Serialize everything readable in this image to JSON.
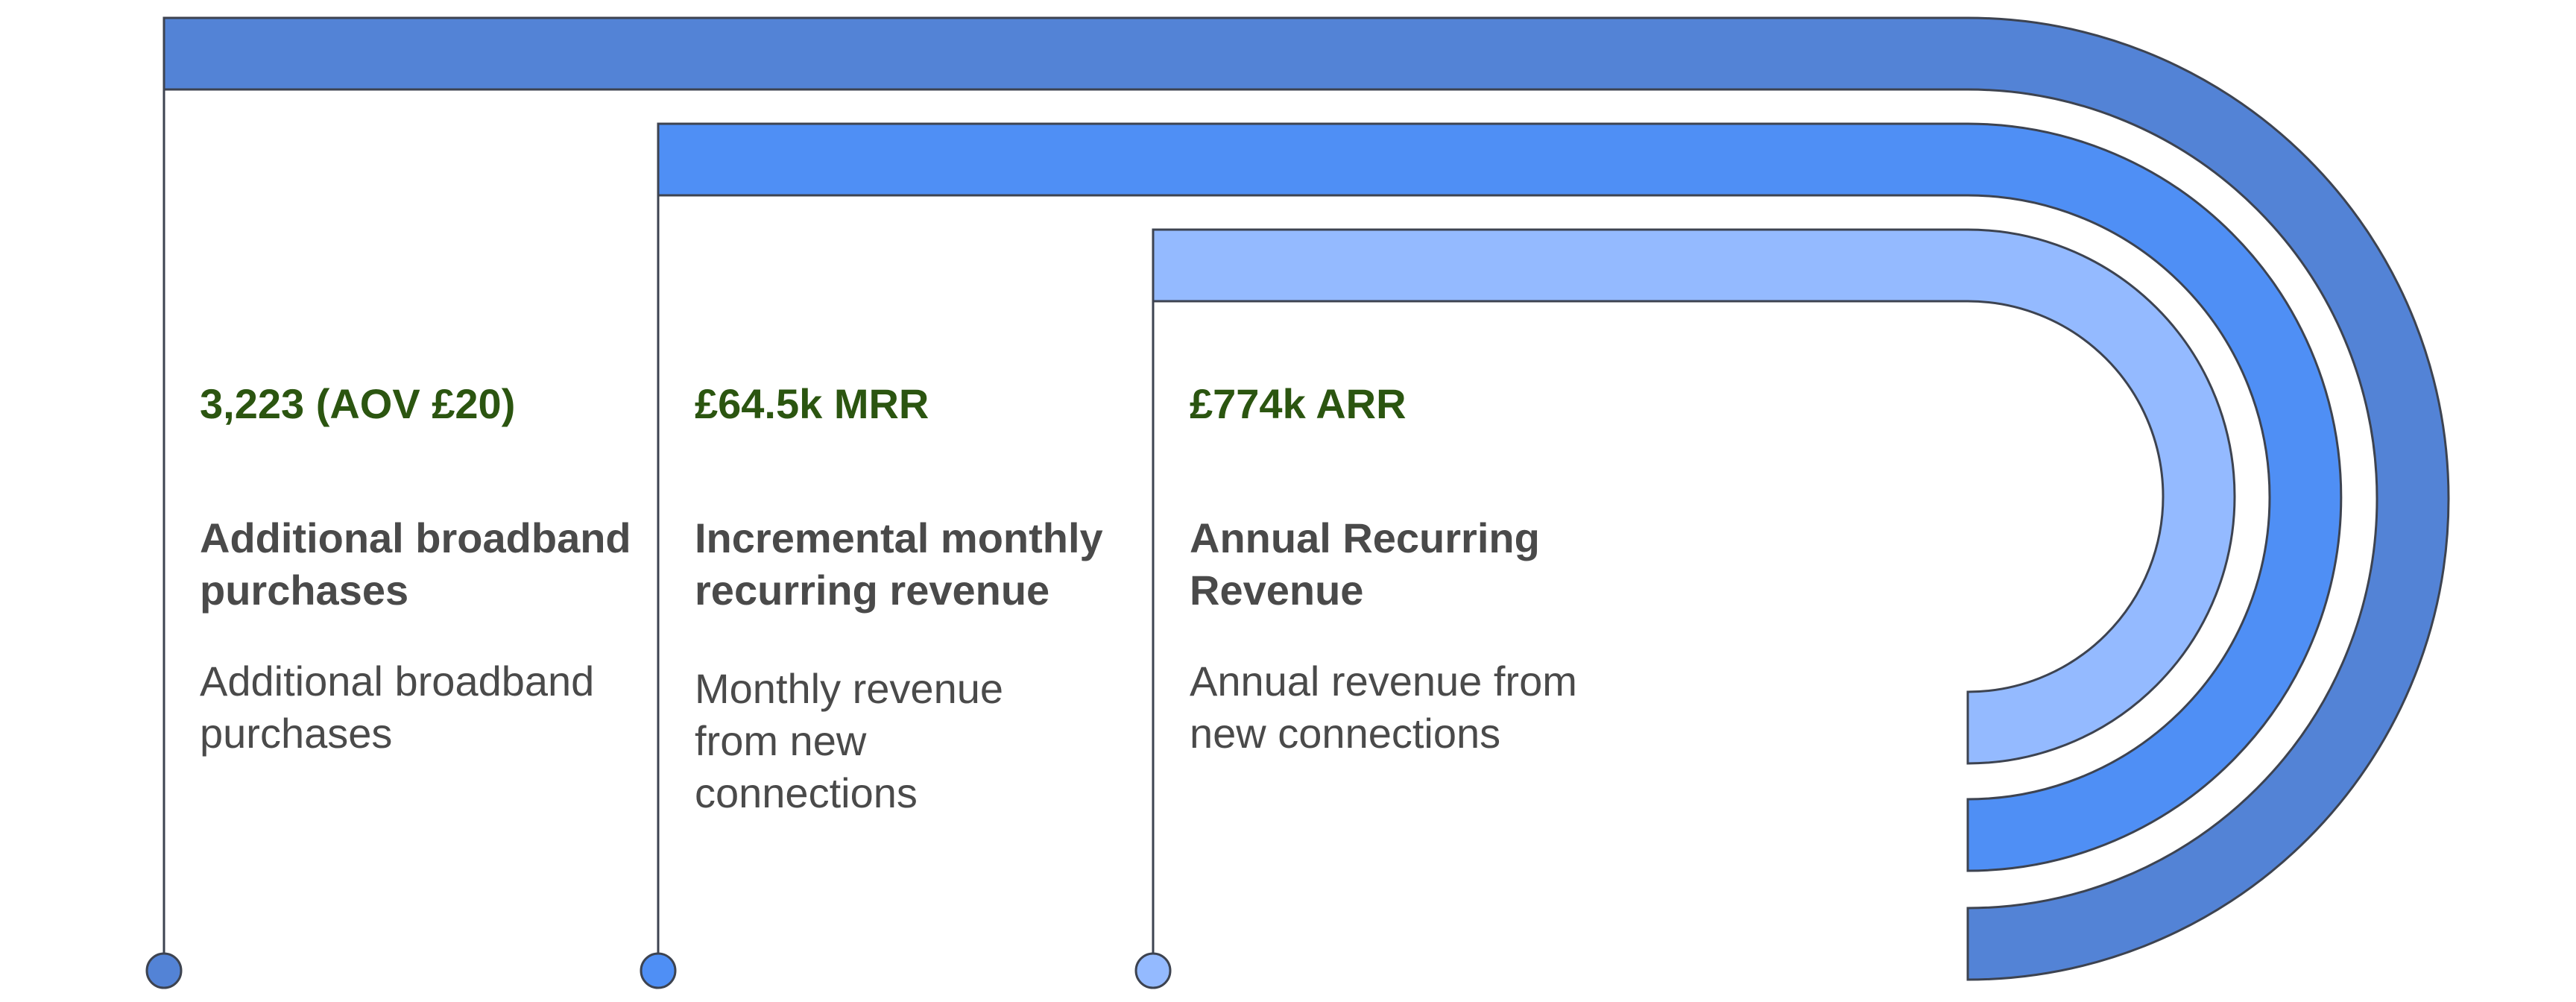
{
  "stages": [
    {
      "metric": "3,223 (AOV £20)",
      "title": "Additional broadband purchases",
      "description": "Additional broadband purchases",
      "color": "#5383d6"
    },
    {
      "metric": "£64.5k MRR",
      "title": "Incremental monthly recurring revenue",
      "description": "Monthly revenue from new connections",
      "color": "#4f8ff5"
    },
    {
      "metric": "£774k ARR",
      "title": "Annual Recurring Revenue",
      "description": "Annual revenue from new connections",
      "color": "#94baff"
    }
  ],
  "metric_color": "#2b5510",
  "outline_color": "#3d4350"
}
